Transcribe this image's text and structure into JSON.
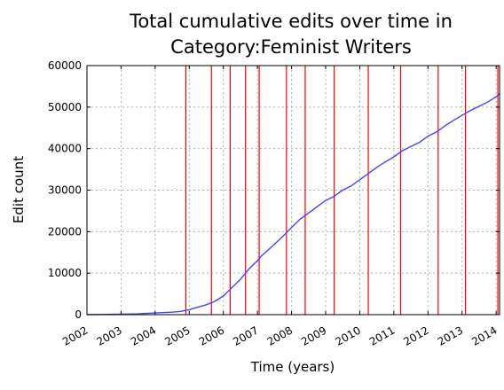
{
  "chart_data": {
    "type": "line",
    "title": "Total cumulative edits over time in Category:Feminist Writers",
    "title_lines": [
      "Total cumulative edits over time in",
      "Category:Feminist Writers"
    ],
    "xlabel": "Time (years)",
    "ylabel": "Edit count",
    "xlim": [
      2002.0,
      2014.1
    ],
    "ylim": [
      0,
      60000
    ],
    "x_ticks": [
      "2002",
      "2003",
      "2004",
      "2005",
      "2006",
      "2007",
      "2008",
      "2009",
      "2010",
      "2011",
      "2012",
      "2013",
      "2014"
    ],
    "y_ticks": [
      "0",
      "10000",
      "20000",
      "30000",
      "40000",
      "50000",
      "60000"
    ],
    "grid": true,
    "legend": "none",
    "series": [
      {
        "color": "#4444ff",
        "x": [
          2002.0,
          2003.0,
          2003.5,
          2004.0,
          2004.5,
          2004.75,
          2005.0,
          2005.25,
          2005.5,
          2005.75,
          2006.0,
          2006.25,
          2006.5,
          2006.75,
          2007.0,
          2007.1,
          2007.3,
          2007.5,
          2007.7,
          2008.0,
          2008.25,
          2008.5,
          2008.75,
          2009.0,
          2009.25,
          2009.5,
          2009.75,
          2010.0,
          2010.25,
          2010.5,
          2010.75,
          2011.0,
          2011.25,
          2011.5,
          2011.75,
          2012.0,
          2012.25,
          2012.5,
          2012.75,
          2013.0,
          2013.25,
          2013.5,
          2013.75,
          2014.0,
          2014.1
        ],
        "y": [
          0,
          100,
          200,
          400,
          600,
          800,
          1200,
          1800,
          2400,
          3200,
          4500,
          6500,
          8500,
          11000,
          13000,
          14000,
          15500,
          17000,
          18500,
          21000,
          23000,
          24500,
          26000,
          27500,
          28500,
          30000,
          31000,
          32500,
          34000,
          35500,
          36800,
          38000,
          39500,
          40500,
          41500,
          43000,
          44000,
          45500,
          46800,
          48000,
          49200,
          50200,
          51200,
          52500,
          53200
        ]
      }
    ],
    "markers": {
      "color": "#ff0000",
      "x": [
        2004.9,
        2005.65,
        2006.2,
        2006.65,
        2007.05,
        2007.85,
        2008.4,
        2009.25,
        2010.25,
        2011.2,
        2012.3,
        2013.1,
        2014.05
      ]
    }
  }
}
